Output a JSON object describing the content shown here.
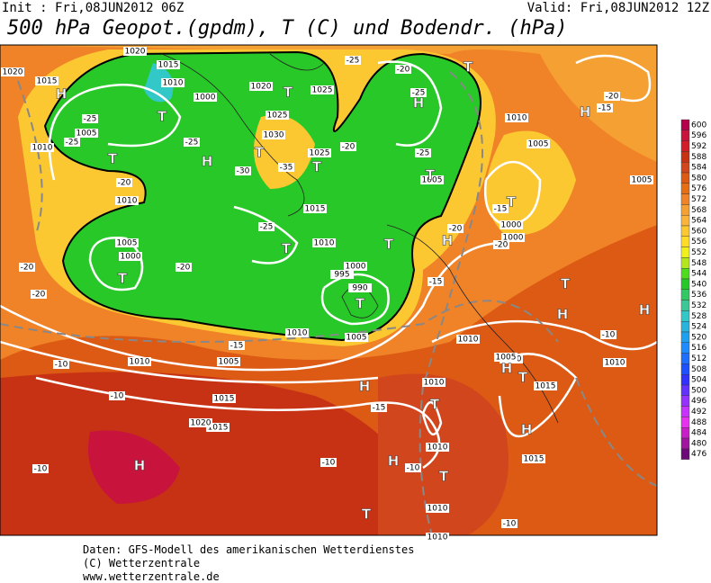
{
  "header": {
    "init": "Init : Fri,08JUN2012 06Z",
    "valid": "Valid: Fri,08JUN2012 12Z",
    "title": "500 hPa Geopot.(gpdm), T (C) und Bodendr. (hPa)"
  },
  "colorbar": {
    "ticks": [
      "600",
      "596",
      "592",
      "588",
      "584",
      "580",
      "576",
      "572",
      "568",
      "564",
      "560",
      "556",
      "552",
      "548",
      "544",
      "540",
      "536",
      "532",
      "528",
      "524",
      "520",
      "516",
      "512",
      "508",
      "504",
      "500",
      "496",
      "492",
      "488",
      "484",
      "480",
      "476"
    ],
    "colors": [
      "#b4004b",
      "#c8143c",
      "#d21e28",
      "#c83214",
      "#d2461e",
      "#dc5a14",
      "#e66e14",
      "#f08228",
      "#f5a032",
      "#fab43c",
      "#fcc832",
      "#ffdc28",
      "#f0f01e",
      "#b4e61e",
      "#50dc1e",
      "#28c828",
      "#32c864",
      "#3cc896",
      "#32c8c8",
      "#28b4dc",
      "#1ea0f0",
      "#1e8cff",
      "#1e6eff",
      "#1e50ff",
      "#3232ff",
      "#6432ff",
      "#9632ff",
      "#c832ff",
      "#e632f0",
      "#c81ec8",
      "#a014a0",
      "#6e0a78"
    ]
  },
  "map": {
    "isobar_labels": [
      "1020",
      "1015",
      "1015",
      "1010",
      "1000",
      "1020",
      "1025",
      "1025",
      "1010",
      "1010",
      "1005",
      "1030",
      "1025",
      "1005",
      "1010",
      "1005",
      "1000",
      "1015",
      "1010",
      "1020",
      "1005",
      "1000",
      "995",
      "990",
      "1000",
      "1010",
      "1005",
      "1010",
      "1010",
      "1010",
      "1015",
      "1015",
      "1010",
      "1005",
      "1010",
      "1015",
      "1020",
      "1010",
      "1010",
      "1010",
      "1015",
      "1000",
      "1005",
      "1005"
    ],
    "temperature_labels": [
      "-25",
      "-25",
      "-25",
      "-30",
      "-35",
      "-20",
      "-25",
      "-25",
      "-25",
      "-20",
      "-20",
      "-20",
      "-20",
      "-20",
      "-25",
      "-15",
      "-20",
      "-15",
      "-10",
      "-10",
      "-15",
      "-10",
      "-10",
      "-10",
      "-10",
      "-15",
      "-20",
      "-15",
      "-10",
      "-20"
    ],
    "centers": [
      "H",
      "T",
      "T",
      "H",
      "T",
      "T",
      "T",
      "H",
      "T",
      "T",
      "T",
      "T",
      "T",
      "T",
      "T",
      "H",
      "T",
      "H",
      "H",
      "H",
      "T",
      "H",
      "T",
      "H",
      "H",
      "H",
      "T",
      "T",
      "H"
    ]
  },
  "footer": [
    "Daten: GFS-Modell des amerikanischen Wetterdienstes",
    "(C) Wetterzentrale",
    "www.wetterzentrale.de"
  ]
}
